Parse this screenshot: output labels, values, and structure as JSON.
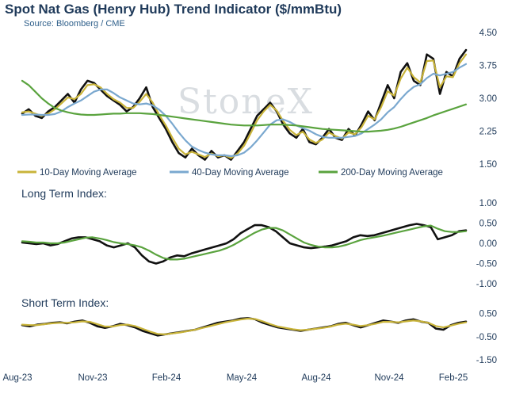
{
  "title": "Spot Nat Gas (Henry Hub) Trend Indicator ($/mmBtu)",
  "subtitle": "Source: Bloomberg / CME",
  "watermark": "StoneX",
  "colors": {
    "price": "#111111",
    "ma10": "#c9b43a",
    "ma40": "#7aa8cf",
    "ma200": "#5aa33e",
    "text": "#1f3a5a"
  },
  "chart_data": [
    {
      "type": "line",
      "title": "Spot Nat Gas (Henry Hub) Trend Indicator ($/mmBtu)",
      "x_ticks": [
        "Aug-23",
        "Nov-23",
        "Feb-24",
        "May-24",
        "Aug-24",
        "Nov-24",
        "Feb-25"
      ],
      "y_ticks": [
        "4.50",
        "3.75",
        "3.00",
        "2.25",
        "1.50"
      ],
      "ylim": [
        1.5,
        4.5
      ],
      "legend": "bottom",
      "series": [
        {
          "name": "",
          "color": "#111111",
          "values": [
            2.65,
            2.75,
            2.6,
            2.55,
            2.7,
            2.8,
            2.95,
            3.1,
            2.9,
            3.2,
            3.4,
            3.35,
            3.2,
            3.05,
            2.95,
            2.85,
            2.7,
            2.8,
            3.0,
            3.25,
            2.8,
            2.55,
            2.3,
            2.0,
            1.75,
            1.65,
            1.85,
            1.7,
            1.6,
            1.8,
            1.65,
            1.7,
            1.6,
            1.8,
            2.0,
            2.3,
            2.6,
            2.75,
            2.9,
            2.7,
            2.4,
            2.2,
            2.1,
            2.3,
            2.0,
            1.95,
            2.1,
            2.3,
            2.1,
            2.05,
            2.3,
            2.15,
            2.4,
            2.7,
            2.5,
            2.9,
            3.3,
            3.0,
            3.6,
            3.8,
            3.4,
            3.3,
            4.0,
            3.9,
            3.1,
            3.6,
            3.5,
            3.9,
            4.1
          ]
        },
        {
          "name": "10-Day Moving Average",
          "color": "#c9b43a",
          "values": [
            2.68,
            2.7,
            2.65,
            2.6,
            2.65,
            2.75,
            2.88,
            3.02,
            2.98,
            3.1,
            3.3,
            3.32,
            3.25,
            3.1,
            2.98,
            2.9,
            2.78,
            2.78,
            2.92,
            3.1,
            2.9,
            2.62,
            2.38,
            2.1,
            1.85,
            1.72,
            1.78,
            1.72,
            1.66,
            1.74,
            1.68,
            1.7,
            1.64,
            1.74,
            1.92,
            2.2,
            2.5,
            2.7,
            2.85,
            2.72,
            2.48,
            2.28,
            2.16,
            2.24,
            2.06,
            1.98,
            2.06,
            2.22,
            2.14,
            2.08,
            2.22,
            2.18,
            2.34,
            2.6,
            2.52,
            2.8,
            3.16,
            3.06,
            3.45,
            3.7,
            3.48,
            3.36,
            3.85,
            3.86,
            3.25,
            3.5,
            3.48,
            3.8,
            4.0
          ]
        },
        {
          "name": "40-Day Moving Average",
          "color": "#7aa8cf",
          "values": [
            2.62,
            2.63,
            2.63,
            2.62,
            2.62,
            2.64,
            2.7,
            2.8,
            2.88,
            2.95,
            3.05,
            3.15,
            3.2,
            3.2,
            3.12,
            3.02,
            2.95,
            2.88,
            2.86,
            2.88,
            2.84,
            2.74,
            2.6,
            2.42,
            2.22,
            2.04,
            1.9,
            1.82,
            1.76,
            1.72,
            1.7,
            1.7,
            1.68,
            1.7,
            1.76,
            1.88,
            2.04,
            2.22,
            2.4,
            2.5,
            2.52,
            2.46,
            2.38,
            2.32,
            2.26,
            2.18,
            2.12,
            2.1,
            2.1,
            2.1,
            2.12,
            2.14,
            2.2,
            2.3,
            2.4,
            2.52,
            2.68,
            2.8,
            2.98,
            3.14,
            3.26,
            3.32,
            3.46,
            3.56,
            3.52,
            3.56,
            3.6,
            3.7,
            3.78
          ]
        },
        {
          "name": "200-Day Moving Average",
          "color": "#5aa33e",
          "values": [
            3.4,
            3.3,
            3.15,
            3.0,
            2.88,
            2.78,
            2.72,
            2.68,
            2.65,
            2.63,
            2.62,
            2.62,
            2.63,
            2.64,
            2.65,
            2.65,
            2.66,
            2.66,
            2.66,
            2.65,
            2.64,
            2.62,
            2.6,
            2.58,
            2.56,
            2.54,
            2.52,
            2.5,
            2.48,
            2.46,
            2.44,
            2.42,
            2.4,
            2.39,
            2.38,
            2.38,
            2.38,
            2.39,
            2.4,
            2.4,
            2.4,
            2.39,
            2.38,
            2.36,
            2.34,
            2.32,
            2.3,
            2.29,
            2.28,
            2.27,
            2.26,
            2.25,
            2.24,
            2.24,
            2.25,
            2.26,
            2.28,
            2.31,
            2.35,
            2.4,
            2.45,
            2.5,
            2.55,
            2.61,
            2.66,
            2.71,
            2.76,
            2.81,
            2.86
          ]
        }
      ]
    },
    {
      "type": "line",
      "title": "Long Term Index:",
      "y_ticks": [
        "1.00",
        "0.50",
        "0.00",
        "-0.50",
        "-1.00"
      ],
      "ylim": [
        -1.0,
        1.0
      ],
      "series": [
        {
          "name": "",
          "color": "#111111",
          "values": [
            0.02,
            0.0,
            -0.02,
            0.0,
            -0.05,
            -0.02,
            0.05,
            0.12,
            0.15,
            0.15,
            0.1,
            0.05,
            -0.05,
            -0.1,
            -0.05,
            0.0,
            -0.1,
            -0.3,
            -0.45,
            -0.5,
            -0.45,
            -0.35,
            -0.3,
            -0.32,
            -0.25,
            -0.2,
            -0.15,
            -0.1,
            -0.05,
            0.0,
            0.1,
            0.25,
            0.35,
            0.45,
            0.45,
            0.4,
            0.3,
            0.15,
            0.0,
            -0.05,
            -0.1,
            -0.12,
            -0.1,
            -0.08,
            -0.05,
            0.0,
            0.05,
            0.15,
            0.2,
            0.18,
            0.2,
            0.25,
            0.3,
            0.35,
            0.4,
            0.45,
            0.48,
            0.45,
            0.4,
            0.1,
            0.15,
            0.2,
            0.3,
            0.32
          ]
        },
        {
          "name": "",
          "color": "#5aa33e",
          "values": [
            0.05,
            0.04,
            0.02,
            0.02,
            0.0,
            0.0,
            0.02,
            0.06,
            0.1,
            0.14,
            0.15,
            0.12,
            0.08,
            0.03,
            0.0,
            -0.02,
            -0.05,
            -0.1,
            -0.18,
            -0.28,
            -0.36,
            -0.4,
            -0.4,
            -0.38,
            -0.34,
            -0.3,
            -0.26,
            -0.22,
            -0.18,
            -0.12,
            -0.04,
            0.06,
            0.16,
            0.26,
            0.34,
            0.38,
            0.38,
            0.32,
            0.22,
            0.12,
            0.02,
            -0.04,
            -0.08,
            -0.1,
            -0.1,
            -0.08,
            -0.04,
            0.02,
            0.08,
            0.12,
            0.15,
            0.18,
            0.22,
            0.26,
            0.3,
            0.34,
            0.38,
            0.42,
            0.44,
            0.36,
            0.3,
            0.28,
            0.28,
            0.3
          ]
        }
      ]
    },
    {
      "type": "line",
      "title": "Short Term Index:",
      "x_ticks": [
        "Aug-23",
        "Nov-23",
        "Feb-24",
        "May-24",
        "Aug-24",
        "Nov-24",
        "Feb-25"
      ],
      "y_ticks": [
        "0.50",
        "-0.50",
        "-1.50"
      ],
      "ylim": [
        -1.5,
        1.0
      ],
      "series": [
        {
          "name": "",
          "color": "#111111",
          "values": [
            0.0,
            -0.05,
            0.02,
            0.05,
            0.1,
            0.12,
            0.08,
            0.15,
            0.2,
            0.1,
            -0.05,
            -0.12,
            -0.05,
            0.05,
            0.0,
            -0.1,
            -0.25,
            -0.35,
            -0.45,
            -0.4,
            -0.35,
            -0.3,
            -0.25,
            -0.2,
            -0.1,
            0.0,
            0.1,
            0.15,
            0.2,
            0.28,
            0.3,
            0.25,
            0.1,
            0.0,
            -0.1,
            -0.15,
            -0.2,
            -0.25,
            -0.2,
            -0.15,
            -0.1,
            -0.05,
            0.05,
            0.1,
            0.0,
            -0.1,
            0.0,
            0.1,
            0.2,
            0.15,
            0.1,
            0.2,
            0.25,
            0.15,
            0.1,
            -0.15,
            -0.2,
            0.0,
            0.1,
            0.15
          ]
        },
        {
          "name": "",
          "color": "#c9b43a",
          "values": [
            0.02,
            0.0,
            0.0,
            0.04,
            0.08,
            0.1,
            0.1,
            0.12,
            0.16,
            0.14,
            0.04,
            -0.06,
            -0.06,
            0.0,
            0.02,
            -0.04,
            -0.16,
            -0.28,
            -0.38,
            -0.4,
            -0.36,
            -0.32,
            -0.26,
            -0.2,
            -0.12,
            -0.04,
            0.04,
            0.12,
            0.18,
            0.24,
            0.28,
            0.26,
            0.16,
            0.04,
            -0.06,
            -0.12,
            -0.18,
            -0.22,
            -0.2,
            -0.16,
            -0.12,
            -0.06,
            0.02,
            0.06,
            0.02,
            -0.04,
            0.0,
            0.06,
            0.14,
            0.14,
            0.12,
            0.16,
            0.2,
            0.16,
            0.1,
            -0.04,
            -0.1,
            -0.02,
            0.06,
            0.12
          ]
        }
      ]
    }
  ]
}
